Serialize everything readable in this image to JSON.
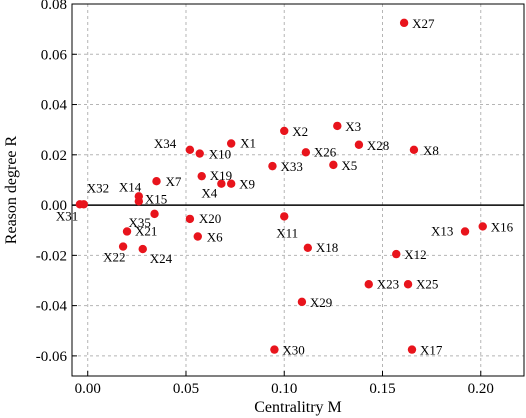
{
  "chart_data": {
    "type": "scatter",
    "xlabel": "Centralitry M",
    "ylabel": "Reason degree R",
    "xlim": [
      -0.008,
      0.222
    ],
    "ylim": [
      -0.068,
      0.08
    ],
    "xticks": [
      0.0,
      0.05,
      0.1,
      0.15,
      0.2
    ],
    "xtick_labels": [
      "0.00",
      "0.05",
      "0.10",
      "0.15",
      "0.20"
    ],
    "yticks": [
      0.08,
      0.06,
      0.04,
      0.02,
      0.0,
      -0.02,
      -0.04,
      -0.06
    ],
    "ytick_labels": [
      "0.08",
      "0.06",
      "0.04",
      "0.02",
      "0.00",
      "-0.02",
      "-0.04",
      "-0.06"
    ],
    "grid": true,
    "zero_line": true,
    "marker_color": "#e8141c",
    "points": [
      {
        "label": "X1",
        "x": 0.073,
        "y": 0.0245
      },
      {
        "label": "X2",
        "x": 0.1,
        "y": 0.0295
      },
      {
        "label": "X3",
        "x": 0.127,
        "y": 0.0315
      },
      {
        "label": "X4",
        "x": 0.068,
        "y": 0.0085
      },
      {
        "label": "X5",
        "x": 0.125,
        "y": 0.016
      },
      {
        "label": "X6",
        "x": 0.056,
        "y": -0.0125
      },
      {
        "label": "X7",
        "x": 0.035,
        "y": 0.0095
      },
      {
        "label": "X8",
        "x": 0.166,
        "y": 0.022
      },
      {
        "label": "X9",
        "x": 0.073,
        "y": 0.0085
      },
      {
        "label": "X10",
        "x": 0.057,
        "y": 0.0205
      },
      {
        "label": "X11",
        "x": 0.1,
        "y": -0.0045
      },
      {
        "label": "X12",
        "x": 0.157,
        "y": -0.0195
      },
      {
        "label": "X13",
        "x": 0.192,
        "y": -0.0105
      },
      {
        "label": "X14",
        "x": 0.026,
        "y": 0.0035
      },
      {
        "label": "X15",
        "x": 0.026,
        "y": 0.0015
      },
      {
        "label": "X16",
        "x": 0.201,
        "y": -0.0085
      },
      {
        "label": "X17",
        "x": 0.165,
        "y": -0.0575
      },
      {
        "label": "X18",
        "x": 0.112,
        "y": -0.017
      },
      {
        "label": "X19",
        "x": 0.058,
        "y": 0.0115
      },
      {
        "label": "X20",
        "x": 0.052,
        "y": -0.0055
      },
      {
        "label": "X21",
        "x": 0.02,
        "y": -0.0105
      },
      {
        "label": "X22",
        "x": 0.018,
        "y": -0.0165
      },
      {
        "label": "X23",
        "x": 0.143,
        "y": -0.0315
      },
      {
        "label": "X24",
        "x": 0.028,
        "y": -0.0175
      },
      {
        "label": "X25",
        "x": 0.163,
        "y": -0.0315
      },
      {
        "label": "X26",
        "x": 0.111,
        "y": 0.021
      },
      {
        "label": "X27",
        "x": 0.161,
        "y": 0.0725
      },
      {
        "label": "X28",
        "x": 0.138,
        "y": 0.024
      },
      {
        "label": "X29",
        "x": 0.109,
        "y": -0.0385
      },
      {
        "label": "X30",
        "x": 0.095,
        "y": -0.0575
      },
      {
        "label": "X31",
        "x": -0.004,
        "y": 0.0003
      },
      {
        "label": "X32",
        "x": -0.002,
        "y": 0.0003
      },
      {
        "label": "X33",
        "x": 0.094,
        "y": 0.0155
      },
      {
        "label": "X34",
        "x": 0.052,
        "y": 0.022
      },
      {
        "label": "X35",
        "x": 0.034,
        "y": -0.0035
      }
    ]
  }
}
